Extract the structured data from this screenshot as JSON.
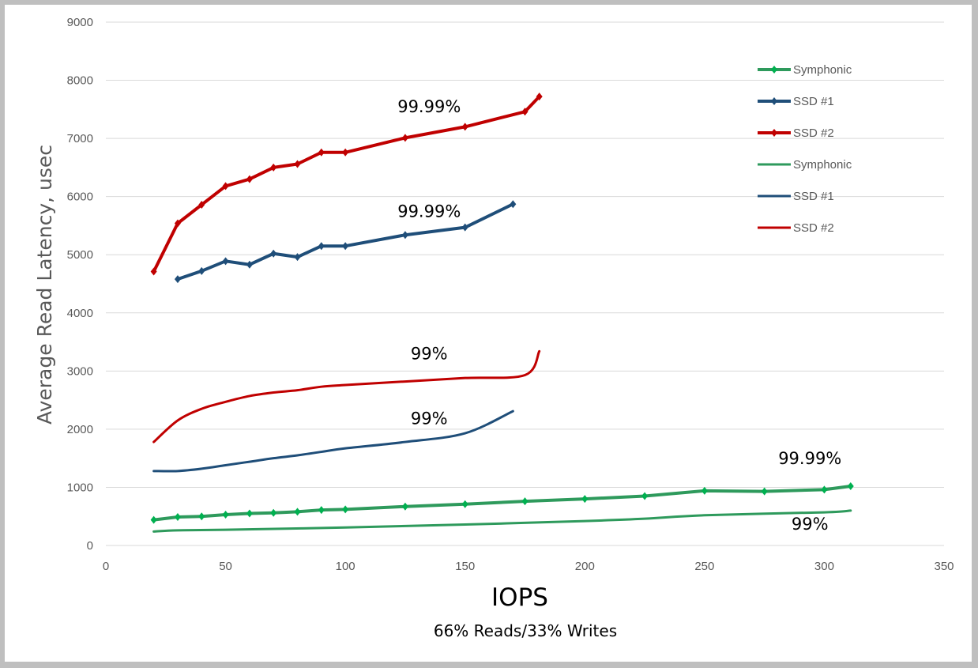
{
  "chart_data": {
    "type": "line",
    "title": "",
    "xlabel": "IOPS",
    "subtitle": "66% Reads/33% Writes",
    "ylabel": "Average Read Latency, usec",
    "xlim": [
      0,
      350
    ],
    "ylim": [
      0,
      9000
    ],
    "x_ticks": [
      0,
      50,
      100,
      150,
      200,
      250,
      300,
      350
    ],
    "y_ticks": [
      0,
      1000,
      2000,
      3000,
      4000,
      5000,
      6000,
      7000,
      8000,
      9000
    ],
    "grid": "horizontal",
    "legend_position": "right",
    "series": [
      {
        "name": "Symphonic",
        "percentile": "99.99%",
        "color": "#2e9a5c",
        "marker_color": "#00b050",
        "markers": true,
        "points": [
          [
            20,
            440
          ],
          [
            30,
            490
          ],
          [
            40,
            500
          ],
          [
            50,
            530
          ],
          [
            60,
            550
          ],
          [
            70,
            560
          ],
          [
            80,
            580
          ],
          [
            90,
            610
          ],
          [
            100,
            620
          ],
          [
            125,
            670
          ],
          [
            150,
            710
          ],
          [
            175,
            760
          ],
          [
            200,
            800
          ],
          [
            225,
            850
          ],
          [
            250,
            940
          ],
          [
            275,
            930
          ],
          [
            300,
            960
          ],
          [
            311,
            1020
          ]
        ]
      },
      {
        "name": "SSD #1",
        "percentile": "99.99%",
        "color": "#1f4e79",
        "marker_color": "#1f4e79",
        "markers": true,
        "points": [
          [
            30,
            4580
          ],
          [
            40,
            4720
          ],
          [
            50,
            4890
          ],
          [
            60,
            4830
          ],
          [
            70,
            5020
          ],
          [
            80,
            4960
          ],
          [
            90,
            5150
          ],
          [
            100,
            5150
          ],
          [
            125,
            5340
          ],
          [
            150,
            5470
          ],
          [
            170,
            5870
          ]
        ]
      },
      {
        "name": "SSD #2",
        "percentile": "99.99%",
        "color": "#c00000",
        "marker_color": "#c00000",
        "markers": true,
        "points": [
          [
            20,
            4710
          ],
          [
            30,
            5540
          ],
          [
            40,
            5860
          ],
          [
            50,
            6180
          ],
          [
            60,
            6300
          ],
          [
            70,
            6500
          ],
          [
            80,
            6560
          ],
          [
            90,
            6760
          ],
          [
            100,
            6760
          ],
          [
            125,
            7010
          ],
          [
            150,
            7200
          ],
          [
            175,
            7460
          ],
          [
            181,
            7720
          ]
        ]
      },
      {
        "name": "Symphonic",
        "percentile": "99%",
        "color": "#2e9a5c",
        "markers": false,
        "points": [
          [
            20,
            240
          ],
          [
            30,
            260
          ],
          [
            50,
            270
          ],
          [
            100,
            310
          ],
          [
            150,
            360
          ],
          [
            200,
            420
          ],
          [
            225,
            460
          ],
          [
            250,
            520
          ],
          [
            300,
            570
          ],
          [
            311,
            600
          ]
        ]
      },
      {
        "name": "SSD #1",
        "percentile": "99%",
        "color": "#1f4e79",
        "markers": false,
        "points": [
          [
            20,
            1280
          ],
          [
            30,
            1280
          ],
          [
            40,
            1320
          ],
          [
            50,
            1380
          ],
          [
            60,
            1440
          ],
          [
            70,
            1500
          ],
          [
            80,
            1550
          ],
          [
            90,
            1610
          ],
          [
            100,
            1670
          ],
          [
            125,
            1780
          ],
          [
            150,
            1930
          ],
          [
            170,
            2310
          ]
        ]
      },
      {
        "name": "SSD #2",
        "percentile": "99%",
        "color": "#c00000",
        "markers": false,
        "points": [
          [
            20,
            1780
          ],
          [
            30,
            2150
          ],
          [
            40,
            2350
          ],
          [
            50,
            2470
          ],
          [
            60,
            2570
          ],
          [
            70,
            2630
          ],
          [
            80,
            2670
          ],
          [
            90,
            2730
          ],
          [
            100,
            2760
          ],
          [
            125,
            2820
          ],
          [
            150,
            2880
          ],
          [
            175,
            2930
          ],
          [
            181,
            3340
          ]
        ]
      }
    ],
    "annotations": [
      {
        "text": "99.99%",
        "x": 135,
        "y": 7450
      },
      {
        "text": "99.99%",
        "x": 135,
        "y": 5650
      },
      {
        "text": "99%",
        "x": 135,
        "y": 3200
      },
      {
        "text": "99%",
        "x": 135,
        "y": 2090
      },
      {
        "text": "99.99%",
        "x": 294,
        "y": 1400
      },
      {
        "text": "99%",
        "x": 294,
        "y": 270
      }
    ]
  },
  "legend": {
    "items": [
      {
        "label": "Symphonic",
        "color": "#2e9a5c",
        "marker": true
      },
      {
        "label": "SSD #1",
        "color": "#1f4e79",
        "marker": true
      },
      {
        "label": "SSD #2",
        "color": "#c00000",
        "marker": true
      },
      {
        "label": "Symphonic",
        "color": "#2e9a5c",
        "marker": false
      },
      {
        "label": "SSD #1",
        "color": "#1f4e79",
        "marker": false
      },
      {
        "label": "SSD #2",
        "color": "#c00000",
        "marker": false
      }
    ]
  }
}
